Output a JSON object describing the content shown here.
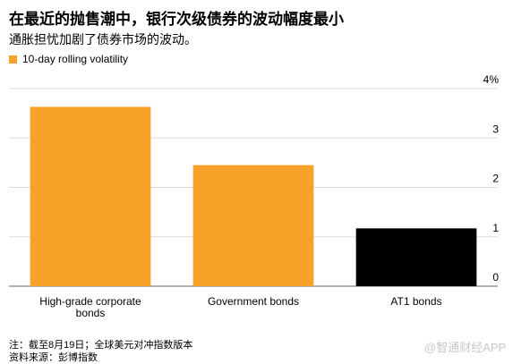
{
  "chart_data": {
    "type": "bar",
    "title": "在最近的抛售潮中，银行次级债券的波动幅度最小",
    "subtitle": "通胀担忧加剧了债券市场的波动。",
    "categories": [
      "High-grade corporate bonds",
      "Government bonds",
      "AT1 bonds"
    ],
    "series": [
      {
        "name": "10-day rolling volatility",
        "color": "#f7a128",
        "colors": [
          "#f7a128",
          "#f7a128",
          "#000000"
        ],
        "values": [
          3.63,
          2.45,
          1.17
        ]
      }
    ],
    "ylim": [
      0,
      4
    ],
    "yticks": [
      0,
      1,
      2,
      3,
      {
        "value": 4,
        "label": "4%"
      }
    ],
    "grid": true,
    "legend": "top-left",
    "notes": [
      "注：截至8月19日；全球美元对冲指数版本",
      "资料来源：彭博指数"
    ],
    "watermark": "@智通财经APP"
  }
}
